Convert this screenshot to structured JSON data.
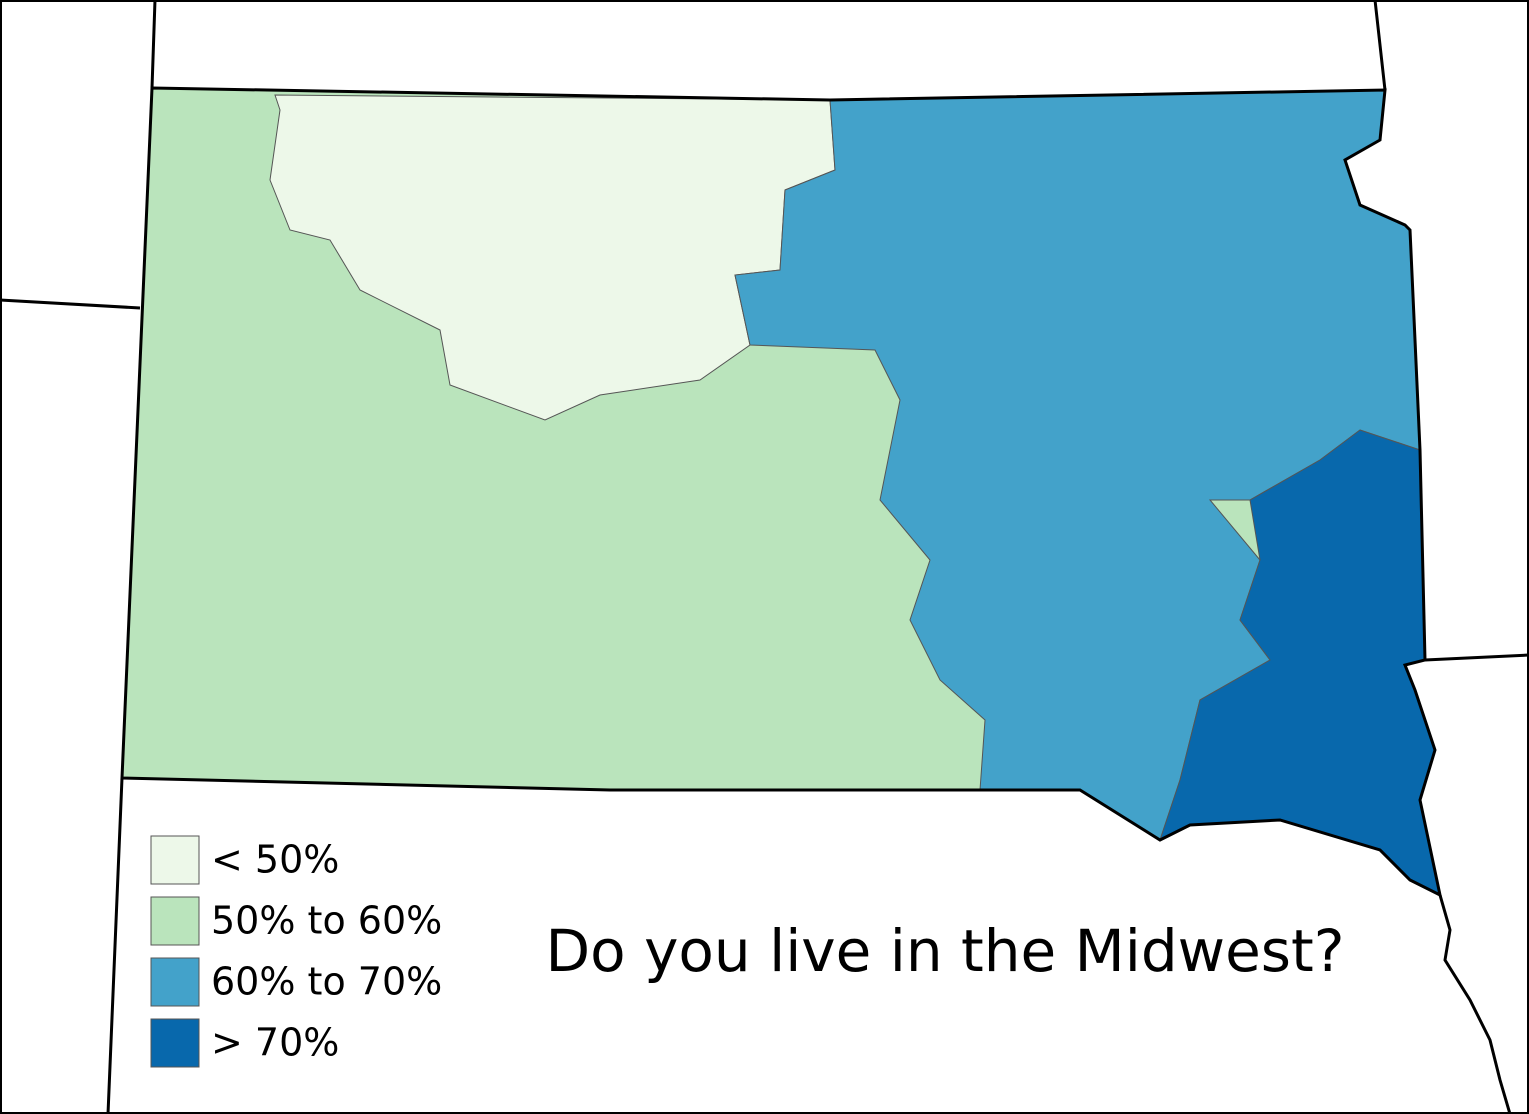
{
  "title": "Do you live in the Midwest?",
  "legend": [
    {
      "label": "< 50%",
      "color": "#edf8e9"
    },
    {
      "label": "50% to 60%",
      "color": "#bae4bc"
    },
    {
      "label": "60% to 70%",
      "color": "#43a2ca"
    },
    {
      "label": "> 70%",
      "color": "#0868ac"
    }
  ]
}
